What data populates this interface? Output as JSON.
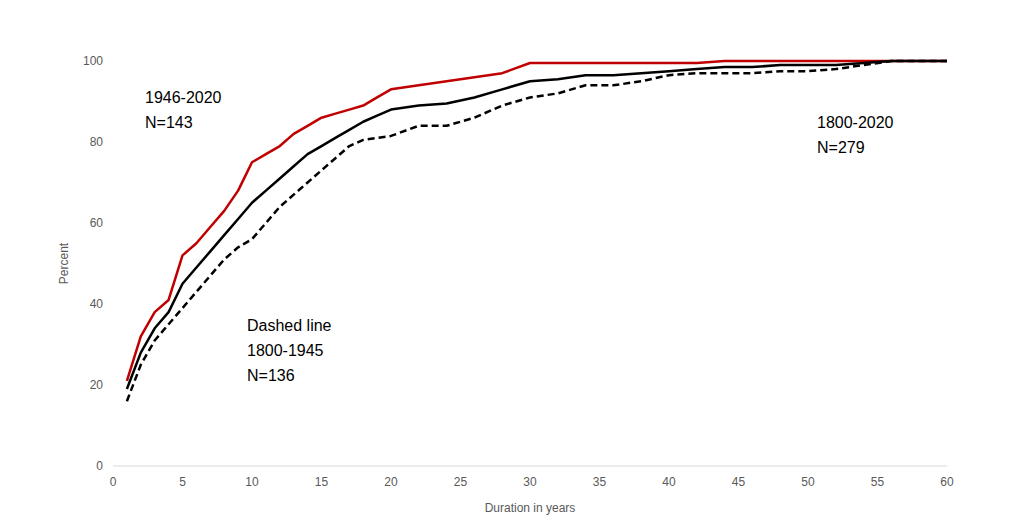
{
  "chart_data": {
    "type": "line",
    "x_label": "Duration in years",
    "y_label": "Percent",
    "x": [
      1,
      2,
      3,
      4,
      5,
      6,
      7,
      8,
      9,
      10,
      11,
      12,
      13,
      14,
      15,
      16,
      17,
      18,
      19,
      20,
      22,
      24,
      26,
      28,
      30,
      32,
      34,
      36,
      38,
      40,
      42,
      44,
      46,
      48,
      50,
      52,
      54,
      56,
      58,
      60
    ],
    "series": [
      {
        "color": "#c00000",
        "line_style": "solid",
        "values": [
          21,
          32,
          38,
          41,
          52,
          55,
          59,
          63,
          68,
          75,
          77,
          79,
          82,
          84,
          86,
          87,
          88,
          89,
          91,
          93,
          94,
          95,
          96,
          97,
          99.5,
          99.5,
          99.5,
          99.5,
          99.5,
          99.5,
          99.5,
          100,
          100,
          100,
          100,
          100,
          100,
          100,
          100,
          100
        ]
      },
      {
        "color": "#000000",
        "line_style": "solid",
        "values": [
          19,
          28,
          34,
          38,
          45,
          49,
          53,
          57,
          61,
          65,
          68,
          71,
          74,
          77,
          79,
          81,
          83,
          85,
          86.5,
          88,
          89,
          89.5,
          91,
          93,
          95,
          95.5,
          96.5,
          96.5,
          97,
          97.5,
          98,
          98.5,
          98.5,
          99,
          99,
          99,
          99.5,
          100,
          100,
          100
        ]
      },
      {
        "color": "#000000",
        "line_style": "dashed",
        "values": [
          16,
          25,
          31,
          35,
          39,
          43,
          47,
          51,
          54,
          56,
          60,
          64,
          67,
          70,
          73,
          76,
          79,
          80.5,
          81,
          81.5,
          84,
          84,
          86,
          89,
          91,
          92,
          94,
          94,
          95,
          96.5,
          97,
          97,
          97,
          97.5,
          97.5,
          98,
          99,
          100,
          100,
          100
        ]
      }
    ],
    "annotations": [
      "1946-2020",
      "N=143",
      "Dashed line",
      "1800-1945",
      "N=136",
      "1800-2020",
      "N=279"
    ],
    "xlim": [
      0,
      60
    ],
    "xticks": [
      0,
      5,
      10,
      15,
      20,
      25,
      30,
      35,
      40,
      45,
      50,
      55,
      60
    ],
    "ylim": [
      0,
      100
    ],
    "yticks": [
      0,
      20,
      40,
      60,
      80,
      100
    ],
    "grid": false
  }
}
